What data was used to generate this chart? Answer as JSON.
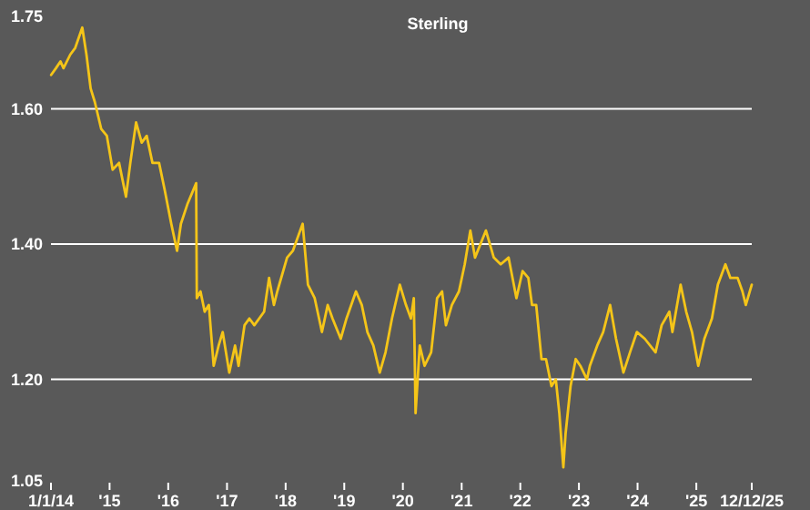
{
  "chart_data": {
    "type": "line",
    "title": "Sterling",
    "x": [
      "2014-01-02",
      "2014-02-01",
      "2014-03-01",
      "2014-03-20",
      "2014-05-01",
      "2014-06-01",
      "2014-07-15",
      "2014-08-10",
      "2014-09-05",
      "2014-10-01",
      "2014-11-10",
      "2014-12-15",
      "2015-01-20",
      "2015-03-01",
      "2015-04-13",
      "2015-05-10",
      "2015-06-15",
      "2015-07-20",
      "2015-08-20",
      "2015-09-25",
      "2015-11-05",
      "2015-12-10",
      "2016-01-20",
      "2016-02-25",
      "2016-03-20",
      "2016-05-01",
      "2016-06-23",
      "2016-06-27",
      "2016-07-20",
      "2016-08-15",
      "2016-09-10",
      "2016-10-10",
      "2016-11-10",
      "2016-12-05",
      "2017-01-15",
      "2017-02-20",
      "2017-03-14",
      "2017-04-20",
      "2017-05-20",
      "2017-06-20",
      "2017-08-20",
      "2017-09-20",
      "2017-10-20",
      "2017-11-10",
      "2018-01-10",
      "2018-02-15",
      "2018-04-17",
      "2018-05-20",
      "2018-07-01",
      "2018-08-15",
      "2018-09-20",
      "2018-10-20",
      "2018-12-10",
      "2019-01-15",
      "2019-03-15",
      "2019-04-20",
      "2019-05-25",
      "2019-07-01",
      "2019-08-10",
      "2019-09-15",
      "2019-10-25",
      "2019-12-13",
      "2020-01-20",
      "2020-02-20",
      "2020-03-09",
      "2020-03-20",
      "2020-04-15",
      "2020-05-15",
      "2020-06-25",
      "2020-08-01",
      "2020-09-01",
      "2020-09-25",
      "2020-11-01",
      "2020-12-15",
      "2021-01-20",
      "2021-02-24",
      "2021-03-25",
      "2021-06-01",
      "2021-07-20",
      "2021-09-01",
      "2021-10-20",
      "2021-12-08",
      "2022-01-15",
      "2022-02-20",
      "2022-03-15",
      "2022-04-10",
      "2022-05-13",
      "2022-06-10",
      "2022-07-14",
      "2022-08-10",
      "2022-09-01",
      "2022-09-26",
      "2022-10-10",
      "2022-11-10",
      "2022-12-12",
      "2023-01-10",
      "2023-02-20",
      "2023-03-10",
      "2023-04-25",
      "2023-06-01",
      "2023-07-14",
      "2023-08-20",
      "2023-10-05",
      "2023-11-15",
      "2023-12-28",
      "2024-02-15",
      "2024-04-22",
      "2024-05-30",
      "2024-07-17",
      "2024-08-05",
      "2024-09-25",
      "2024-10-30",
      "2024-12-05",
      "2025-01-13",
      "2025-02-20",
      "2025-04-08",
      "2025-05-15",
      "2025-07-01",
      "2025-08-01",
      "2025-09-15",
      "2025-10-15",
      "2025-11-05",
      "2025-12-12"
    ],
    "series": [
      {
        "color": "#f5c518",
        "values": [
          1.65,
          1.66,
          1.67,
          1.66,
          1.68,
          1.69,
          1.72,
          1.68,
          1.63,
          1.61,
          1.57,
          1.56,
          1.51,
          1.52,
          1.47,
          1.52,
          1.58,
          1.55,
          1.56,
          1.52,
          1.52,
          1.48,
          1.43,
          1.39,
          1.43,
          1.46,
          1.49,
          1.32,
          1.33,
          1.3,
          1.31,
          1.22,
          1.25,
          1.27,
          1.21,
          1.25,
          1.22,
          1.28,
          1.29,
          1.28,
          1.3,
          1.35,
          1.31,
          1.33,
          1.38,
          1.39,
          1.43,
          1.34,
          1.32,
          1.27,
          1.31,
          1.29,
          1.26,
          1.29,
          1.33,
          1.31,
          1.27,
          1.25,
          1.21,
          1.24,
          1.29,
          1.34,
          1.31,
          1.29,
          1.32,
          1.15,
          1.25,
          1.22,
          1.24,
          1.32,
          1.33,
          1.28,
          1.31,
          1.33,
          1.37,
          1.42,
          1.38,
          1.42,
          1.38,
          1.37,
          1.38,
          1.32,
          1.36,
          1.35,
          1.31,
          1.31,
          1.23,
          1.23,
          1.19,
          1.2,
          1.15,
          1.07,
          1.12,
          1.19,
          1.23,
          1.22,
          1.2,
          1.22,
          1.25,
          1.27,
          1.31,
          1.26,
          1.21,
          1.24,
          1.27,
          1.26,
          1.24,
          1.28,
          1.3,
          1.27,
          1.34,
          1.3,
          1.27,
          1.22,
          1.26,
          1.29,
          1.34,
          1.37,
          1.35,
          1.35,
          1.33,
          1.31,
          1.34
        ]
      }
    ],
    "xlim": [
      "2014-01-01",
      "2025-12-12"
    ],
    "xticks": [
      {
        "value": "2014-01-01",
        "label": "1/1/14"
      },
      {
        "value": "2015-01-01",
        "label": "'15"
      },
      {
        "value": "2016-01-01",
        "label": "'16"
      },
      {
        "value": "2017-01-01",
        "label": "'17"
      },
      {
        "value": "2018-01-01",
        "label": "'18"
      },
      {
        "value": "2019-01-01",
        "label": "'19"
      },
      {
        "value": "2020-01-01",
        "label": "'20"
      },
      {
        "value": "2021-01-01",
        "label": "'21"
      },
      {
        "value": "2022-01-01",
        "label": "'22"
      },
      {
        "value": "2023-01-01",
        "label": "'23"
      },
      {
        "value": "2024-01-01",
        "label": "'24"
      },
      {
        "value": "2025-01-01",
        "label": "'25"
      },
      {
        "value": "2025-12-12",
        "label": "12/12/25"
      }
    ],
    "ylim": [
      1.05,
      1.75
    ],
    "yticks": [
      {
        "value": 1.05,
        "label": "1.05"
      },
      {
        "value": 1.2,
        "label": "1.20"
      },
      {
        "value": 1.4,
        "label": "1.40"
      },
      {
        "value": 1.6,
        "label": "1.60"
      },
      {
        "value": 1.75,
        "label": "1.75"
      }
    ],
    "grid": "y",
    "line_style": "solid",
    "marker": "none"
  }
}
